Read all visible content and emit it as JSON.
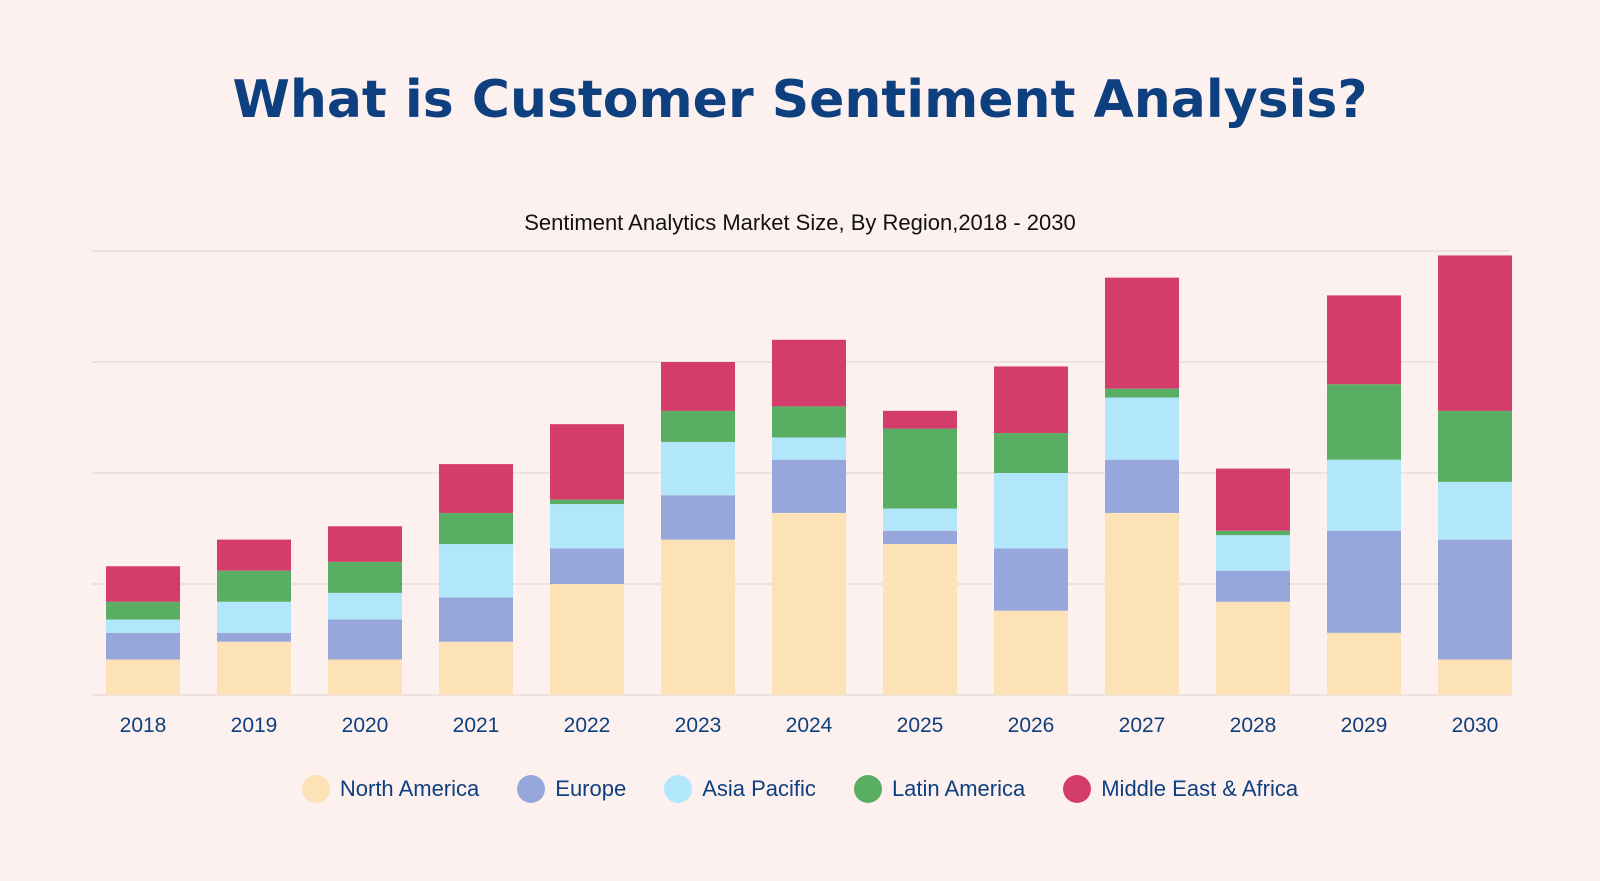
{
  "header": {
    "title": "What is Customer Sentiment Analysis?"
  },
  "chart_data": {
    "type": "bar",
    "stacked": true,
    "title": "Sentiment Analytics Market Size, By Region,2018 - 2030",
    "xlabel": "",
    "ylabel": "",
    "ylim": [
      0,
      100
    ],
    "grid": true,
    "legend_position": "bottom",
    "categories": [
      "2018",
      "2019",
      "2020",
      "2021",
      "2022",
      "2023",
      "2024",
      "2025",
      "2026",
      "2027",
      "2028",
      "2029",
      "2030"
    ],
    "series": [
      {
        "name": "North America",
        "color": "#fde1b7",
        "values": [
          8,
          12,
          8,
          12,
          25,
          35,
          41,
          34,
          19,
          41,
          21,
          14,
          8
        ]
      },
      {
        "name": "Europe",
        "color": "#97a7dc",
        "values": [
          6,
          2,
          9,
          10,
          8,
          10,
          12,
          3,
          14,
          12,
          7,
          23,
          27
        ]
      },
      {
        "name": "Asia Pacific",
        "color": "#b2e7fb",
        "values": [
          3,
          7,
          6,
          12,
          10,
          12,
          5,
          5,
          17,
          14,
          8,
          16,
          13
        ]
      },
      {
        "name": "Latin America",
        "color": "#5aae64",
        "values": [
          4,
          7,
          7,
          7,
          1,
          7,
          7,
          18,
          9,
          2,
          1,
          17,
          16
        ]
      },
      {
        "name": "Middle East & Africa",
        "color": "#d43c6b",
        "values": [
          8,
          7,
          8,
          11,
          17,
          11,
          15,
          4,
          15,
          25,
          14,
          20,
          35
        ]
      }
    ]
  }
}
